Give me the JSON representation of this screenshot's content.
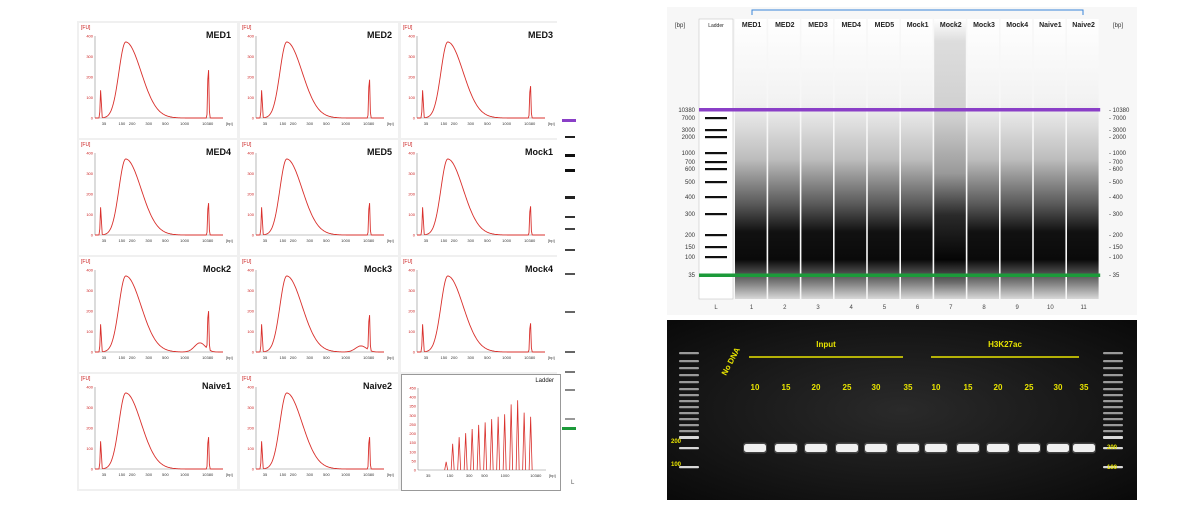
{
  "electropherograms": {
    "y_unit": "[FU]",
    "x_unit": "[bp]",
    "x_ticks": [
      "35",
      "150",
      "200",
      "300",
      "500",
      "1000",
      "10380"
    ],
    "panels": [
      {
        "title": "MED1",
        "y_ticks": [
          "0",
          "100",
          "200",
          "300",
          "400"
        ],
        "tail": 0.0,
        "marker_peak": 0.75
      },
      {
        "title": "MED2",
        "y_ticks": [
          "0",
          "100",
          "200",
          "300",
          "400"
        ],
        "tail": 0.0,
        "marker_peak": 0.6
      },
      {
        "title": "MED3",
        "y_ticks": [
          "0",
          "100",
          "200",
          "300",
          "400"
        ],
        "tail": 0.0,
        "marker_peak": 0.5
      },
      {
        "title": "MED4",
        "y_ticks": [
          "0",
          "100",
          "200",
          "300",
          "400"
        ],
        "tail": 0.0,
        "marker_peak": 0.5
      },
      {
        "title": "MED5",
        "y_ticks": [
          "0",
          "100",
          "200",
          "300",
          "400"
        ],
        "tail": 0.0,
        "marker_peak": 0.5
      },
      {
        "title": "Mock1",
        "y_ticks": [
          "0",
          "100",
          "200",
          "300",
          "400"
        ],
        "tail": 0.0,
        "marker_peak": 0.45
      },
      {
        "title": "Mock2",
        "y_ticks": [
          "0",
          "100",
          "200",
          "300",
          "400"
        ],
        "tail": 0.12,
        "marker_peak": 0.6
      },
      {
        "title": "Mock3",
        "y_ticks": [
          "0",
          "100",
          "200",
          "300",
          "400"
        ],
        "tail": 0.08,
        "marker_peak": 0.55
      },
      {
        "title": "Mock4",
        "y_ticks": [
          "0",
          "100",
          "200",
          "300",
          "400"
        ],
        "tail": 0.0,
        "marker_peak": 0.45
      },
      {
        "title": "Naive1",
        "y_ticks": [
          "0",
          "100",
          "200",
          "300",
          "400"
        ],
        "tail": 0.0,
        "marker_peak": 0.5
      },
      {
        "title": "Naive2",
        "y_ticks": [
          "0",
          "100",
          "200",
          "300",
          "400"
        ],
        "tail": 0.0,
        "marker_peak": 0.5
      }
    ],
    "ladder": {
      "title": "Ladder",
      "y_ticks": [
        "0",
        "50",
        "100",
        "150",
        "200",
        "250",
        "300",
        "350",
        "400",
        "450"
      ],
      "x_ticks": [
        "35",
        "150",
        "300",
        "500",
        "1000",
        "10380"
      ],
      "peaks": [
        0.1,
        0.32,
        0.4,
        0.45,
        0.5,
        0.55,
        0.58,
        0.62,
        0.65,
        0.68,
        0.8,
        0.85,
        0.7,
        0.65
      ]
    }
  },
  "side_strip": {
    "lane_label": "L"
  },
  "tapestation": {
    "bp_unit": "[bp]",
    "ladder_label": "Ladder",
    "lanes": [
      "MED1",
      "MED2",
      "MED3",
      "MED4",
      "MED5",
      "Mock1",
      "Mock2",
      "Mock3",
      "Mock4",
      "Naive1",
      "Naive2"
    ],
    "lane_numbers": [
      "L",
      "1",
      "2",
      "3",
      "4",
      "5",
      "6",
      "7",
      "8",
      "9",
      "10",
      "11"
    ],
    "size_markers": [
      "10380",
      "7000",
      "3000",
      "2000",
      "1000",
      "700",
      "600",
      "500",
      "400",
      "300",
      "200",
      "150",
      "100",
      "35"
    ],
    "upper_marker_color": "#8a3fc7",
    "lower_marker_color": "#1c9a3a"
  },
  "agarose": {
    "no_dna_label": "No DNA",
    "groups": [
      {
        "label": "Input",
        "cycles": [
          "10",
          "15",
          "20",
          "25",
          "30",
          "35"
        ]
      },
      {
        "label": "H3K27ac",
        "cycles": [
          "10",
          "15",
          "20",
          "25",
          "30",
          "35"
        ]
      }
    ],
    "ladder_marks": [
      "200",
      "100"
    ],
    "label_color": "#e8e400"
  }
}
